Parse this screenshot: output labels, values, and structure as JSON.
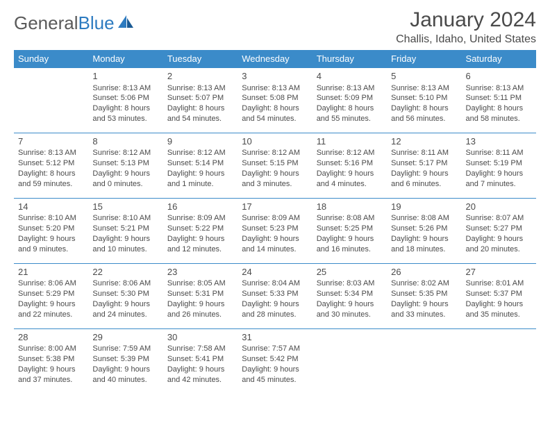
{
  "brand": {
    "part1": "General",
    "part2": "Blue"
  },
  "colors": {
    "header_bg": "#3b8bc9",
    "header_text": "#ffffff",
    "accent": "#2d7bc0",
    "text": "#4a4a4a",
    "rule": "#3b8bc9",
    "page_bg": "#ffffff"
  },
  "title": "January 2024",
  "location": "Challis, Idaho, United States",
  "weekdays": [
    "Sunday",
    "Monday",
    "Tuesday",
    "Wednesday",
    "Thursday",
    "Friday",
    "Saturday"
  ],
  "layout": {
    "rows": 5,
    "cols": 7,
    "start_offset": 1,
    "days_in_month": 31
  },
  "days": [
    {
      "n": "1",
      "sr": "Sunrise: 8:13 AM",
      "ss": "Sunset: 5:06 PM",
      "d1": "Daylight: 8 hours",
      "d2": "and 53 minutes."
    },
    {
      "n": "2",
      "sr": "Sunrise: 8:13 AM",
      "ss": "Sunset: 5:07 PM",
      "d1": "Daylight: 8 hours",
      "d2": "and 54 minutes."
    },
    {
      "n": "3",
      "sr": "Sunrise: 8:13 AM",
      "ss": "Sunset: 5:08 PM",
      "d1": "Daylight: 8 hours",
      "d2": "and 54 minutes."
    },
    {
      "n": "4",
      "sr": "Sunrise: 8:13 AM",
      "ss": "Sunset: 5:09 PM",
      "d1": "Daylight: 8 hours",
      "d2": "and 55 minutes."
    },
    {
      "n": "5",
      "sr": "Sunrise: 8:13 AM",
      "ss": "Sunset: 5:10 PM",
      "d1": "Daylight: 8 hours",
      "d2": "and 56 minutes."
    },
    {
      "n": "6",
      "sr": "Sunrise: 8:13 AM",
      "ss": "Sunset: 5:11 PM",
      "d1": "Daylight: 8 hours",
      "d2": "and 58 minutes."
    },
    {
      "n": "7",
      "sr": "Sunrise: 8:13 AM",
      "ss": "Sunset: 5:12 PM",
      "d1": "Daylight: 8 hours",
      "d2": "and 59 minutes."
    },
    {
      "n": "8",
      "sr": "Sunrise: 8:12 AM",
      "ss": "Sunset: 5:13 PM",
      "d1": "Daylight: 9 hours",
      "d2": "and 0 minutes."
    },
    {
      "n": "9",
      "sr": "Sunrise: 8:12 AM",
      "ss": "Sunset: 5:14 PM",
      "d1": "Daylight: 9 hours",
      "d2": "and 1 minute."
    },
    {
      "n": "10",
      "sr": "Sunrise: 8:12 AM",
      "ss": "Sunset: 5:15 PM",
      "d1": "Daylight: 9 hours",
      "d2": "and 3 minutes."
    },
    {
      "n": "11",
      "sr": "Sunrise: 8:12 AM",
      "ss": "Sunset: 5:16 PM",
      "d1": "Daylight: 9 hours",
      "d2": "and 4 minutes."
    },
    {
      "n": "12",
      "sr": "Sunrise: 8:11 AM",
      "ss": "Sunset: 5:17 PM",
      "d1": "Daylight: 9 hours",
      "d2": "and 6 minutes."
    },
    {
      "n": "13",
      "sr": "Sunrise: 8:11 AM",
      "ss": "Sunset: 5:19 PM",
      "d1": "Daylight: 9 hours",
      "d2": "and 7 minutes."
    },
    {
      "n": "14",
      "sr": "Sunrise: 8:10 AM",
      "ss": "Sunset: 5:20 PM",
      "d1": "Daylight: 9 hours",
      "d2": "and 9 minutes."
    },
    {
      "n": "15",
      "sr": "Sunrise: 8:10 AM",
      "ss": "Sunset: 5:21 PM",
      "d1": "Daylight: 9 hours",
      "d2": "and 10 minutes."
    },
    {
      "n": "16",
      "sr": "Sunrise: 8:09 AM",
      "ss": "Sunset: 5:22 PM",
      "d1": "Daylight: 9 hours",
      "d2": "and 12 minutes."
    },
    {
      "n": "17",
      "sr": "Sunrise: 8:09 AM",
      "ss": "Sunset: 5:23 PM",
      "d1": "Daylight: 9 hours",
      "d2": "and 14 minutes."
    },
    {
      "n": "18",
      "sr": "Sunrise: 8:08 AM",
      "ss": "Sunset: 5:25 PM",
      "d1": "Daylight: 9 hours",
      "d2": "and 16 minutes."
    },
    {
      "n": "19",
      "sr": "Sunrise: 8:08 AM",
      "ss": "Sunset: 5:26 PM",
      "d1": "Daylight: 9 hours",
      "d2": "and 18 minutes."
    },
    {
      "n": "20",
      "sr": "Sunrise: 8:07 AM",
      "ss": "Sunset: 5:27 PM",
      "d1": "Daylight: 9 hours",
      "d2": "and 20 minutes."
    },
    {
      "n": "21",
      "sr": "Sunrise: 8:06 AM",
      "ss": "Sunset: 5:29 PM",
      "d1": "Daylight: 9 hours",
      "d2": "and 22 minutes."
    },
    {
      "n": "22",
      "sr": "Sunrise: 8:06 AM",
      "ss": "Sunset: 5:30 PM",
      "d1": "Daylight: 9 hours",
      "d2": "and 24 minutes."
    },
    {
      "n": "23",
      "sr": "Sunrise: 8:05 AM",
      "ss": "Sunset: 5:31 PM",
      "d1": "Daylight: 9 hours",
      "d2": "and 26 minutes."
    },
    {
      "n": "24",
      "sr": "Sunrise: 8:04 AM",
      "ss": "Sunset: 5:33 PM",
      "d1": "Daylight: 9 hours",
      "d2": "and 28 minutes."
    },
    {
      "n": "25",
      "sr": "Sunrise: 8:03 AM",
      "ss": "Sunset: 5:34 PM",
      "d1": "Daylight: 9 hours",
      "d2": "and 30 minutes."
    },
    {
      "n": "26",
      "sr": "Sunrise: 8:02 AM",
      "ss": "Sunset: 5:35 PM",
      "d1": "Daylight: 9 hours",
      "d2": "and 33 minutes."
    },
    {
      "n": "27",
      "sr": "Sunrise: 8:01 AM",
      "ss": "Sunset: 5:37 PM",
      "d1": "Daylight: 9 hours",
      "d2": "and 35 minutes."
    },
    {
      "n": "28",
      "sr": "Sunrise: 8:00 AM",
      "ss": "Sunset: 5:38 PM",
      "d1": "Daylight: 9 hours",
      "d2": "and 37 minutes."
    },
    {
      "n": "29",
      "sr": "Sunrise: 7:59 AM",
      "ss": "Sunset: 5:39 PM",
      "d1": "Daylight: 9 hours",
      "d2": "and 40 minutes."
    },
    {
      "n": "30",
      "sr": "Sunrise: 7:58 AM",
      "ss": "Sunset: 5:41 PM",
      "d1": "Daylight: 9 hours",
      "d2": "and 42 minutes."
    },
    {
      "n": "31",
      "sr": "Sunrise: 7:57 AM",
      "ss": "Sunset: 5:42 PM",
      "d1": "Daylight: 9 hours",
      "d2": "and 45 minutes."
    }
  ]
}
